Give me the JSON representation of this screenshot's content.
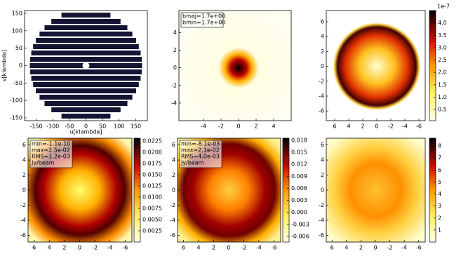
{
  "chart_data": [
    {
      "type": "scatter",
      "xlabel": "u[klambda]",
      "ylabel": "v[klambda]",
      "xlim": [
        -185,
        185
      ],
      "ylim": [
        -158,
        158
      ],
      "xticks": [
        -150,
        -100,
        -50,
        0,
        50,
        100,
        150
      ],
      "yticks": [
        -150,
        -100,
        -50,
        0,
        50,
        100,
        150
      ]
    },
    {
      "type": "image",
      "annotations": [
        "bmaj=1.7e+00",
        "bmin=1.7e+00"
      ],
      "xlim": [
        -6.8,
        6
      ],
      "ylim": [
        -6,
        6.5
      ],
      "xticks": [
        -4,
        -2,
        0,
        2,
        4
      ],
      "yticks": [
        -4,
        -2,
        0,
        2,
        4
      ]
    },
    {
      "type": "image",
      "xlim": [
        7.2,
        -6.9
      ],
      "ylim": [
        -7.3,
        7.5
      ],
      "xticks": [
        6,
        4,
        2,
        0,
        -2,
        -4,
        -6
      ],
      "yticks": [
        -6,
        -4,
        -2,
        0,
        2,
        4,
        6
      ],
      "colorbar": {
        "clim": [
          0.05,
          4.5
        ],
        "offset_label": "1e-7",
        "ticks": [
          0.5,
          {
            "value": 1,
            "label": "1.0"
          },
          1.5,
          {
            "value": 2,
            "label": "2.0"
          },
          2.5,
          {
            "value": 3,
            "label": "3.0"
          },
          3.5,
          {
            "value": 4,
            "label": "4.0"
          }
        ]
      }
    },
    {
      "type": "image",
      "annotations": [
        "min=-1.1e-10",
        "max=2.5e-02",
        "RMS=1.2e-03",
        "Jy/beam"
      ],
      "xlim": [
        6.8,
        -6.9
      ],
      "ylim": [
        -6.9,
        6.9
      ],
      "xticks": [
        6,
        4,
        2,
        0,
        -2,
        -4,
        -6
      ],
      "yticks": [
        -6,
        -4,
        -2,
        0,
        2,
        4,
        6
      ],
      "colorbar": {
        "clim": [
          0,
          0.0231
        ],
        "ticks": [
          0.0025,
          {
            "value": 0.005,
            "label": "0.0050"
          },
          0.0075,
          {
            "value": 0.01,
            "label": "0.0100"
          },
          0.0125,
          {
            "value": 0.015,
            "label": "0.0150"
          },
          0.0175,
          {
            "value": 0.02,
            "label": "0.0200"
          },
          0.0225
        ]
      }
    },
    {
      "type": "image",
      "annotations": [
        "min=-8.1e-03",
        "max=2.1e-02",
        "RMS=4.0e-03",
        "Jy/beam"
      ],
      "xlim": [
        6.8,
        -6.9
      ],
      "ylim": [
        -6.9,
        6.9
      ],
      "xticks": [
        6,
        4,
        2,
        0,
        -2,
        -4,
        -6
      ],
      "yticks": [
        -6,
        -4,
        -2,
        0,
        2,
        4,
        6
      ],
      "colorbar": {
        "clim": [
          -0.0074,
          0.0185
        ],
        "ticks": [
          -0.006,
          -0.003,
          {
            "value": 0,
            "label": "0.000"
          },
          0.003,
          0.006,
          0.009,
          0.012,
          0.015,
          0.018
        ]
      }
    },
    {
      "type": "image",
      "xlim": [
        6.8,
        -6.9
      ],
      "ylim": [
        -6.9,
        6.9
      ],
      "xticks": [
        6,
        4,
        2,
        0,
        -2,
        -4,
        -6
      ],
      "yticks": [
        -6,
        -4,
        -2,
        0,
        2,
        4,
        6
      ],
      "colorbar": {
        "clim": [
          0,
          8.65
        ],
        "ticks": [
          1,
          2,
          3,
          4,
          5,
          6,
          7,
          8
        ]
      }
    }
  ]
}
